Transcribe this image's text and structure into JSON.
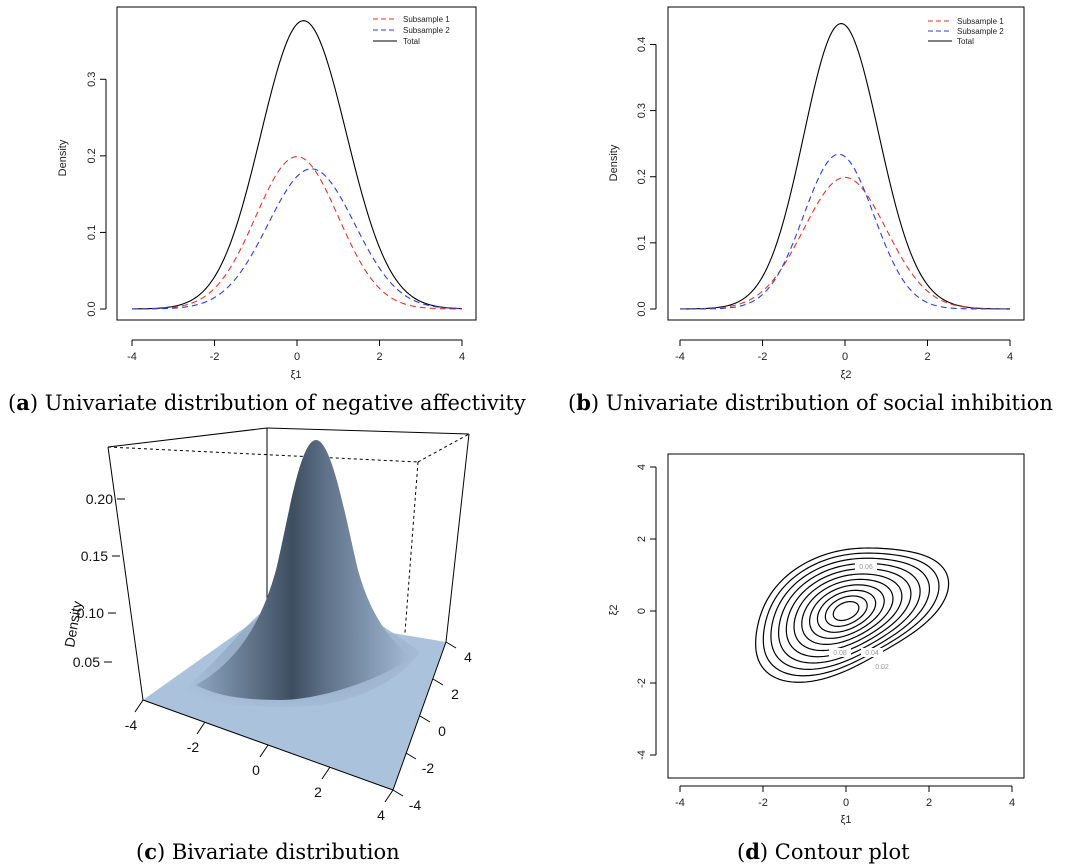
{
  "captions": {
    "a": {
      "letter": "a",
      "text": " Univariate distribution of negative affectivity"
    },
    "b": {
      "letter": "b",
      "text": " Univariate distribution of social inhibition"
    },
    "c": {
      "letter": "c",
      "text": " Bivariate distribution"
    },
    "d": {
      "letter": "d",
      "text": " Contour plot"
    }
  },
  "chart_data": [
    {
      "id": "a",
      "type": "line",
      "xlabel": "ξ1",
      "ylabel": "Density",
      "xlim": [
        -4,
        4
      ],
      "ylim": [
        0,
        0.38
      ],
      "xticks": [
        "-4",
        "-2",
        "0",
        "2",
        "4"
      ],
      "yticks": [
        "0.0",
        "0.1",
        "0.2",
        "0.3"
      ],
      "legend": {
        "position": "top-right",
        "entries": [
          "Subsample 1",
          "Subsample 2",
          "Total"
        ]
      },
      "series": [
        {
          "name": "Subsample 1",
          "style": "dashed",
          "color": "#e8322a",
          "distribution": "normal-mixture-component",
          "peak_x": 0.0,
          "peak_y": 0.199,
          "sd": 1.0
        },
        {
          "name": "Subsample 2",
          "style": "dashed",
          "color": "#2a3be8",
          "distribution": "normal-mixture-component",
          "peak_x": 0.35,
          "peak_y": 0.183,
          "sd": 1.05
        },
        {
          "name": "Total",
          "style": "solid",
          "color": "#000000",
          "distribution": "sum",
          "peak_x": 0.17,
          "peak_y": 0.381
        }
      ]
    },
    {
      "id": "b",
      "type": "line",
      "xlabel": "ξ2",
      "ylabel": "Density",
      "xlim": [
        -4,
        4
      ],
      "ylim": [
        0,
        0.43
      ],
      "xticks": [
        "-4",
        "-2",
        "0",
        "2",
        "4"
      ],
      "yticks": [
        "0.0",
        "0.1",
        "0.2",
        "0.3",
        "0.4"
      ],
      "legend": {
        "position": "top-right",
        "entries": [
          "Subsample 1",
          "Subsample 2",
          "Total"
        ]
      },
      "series": [
        {
          "name": "Subsample 1",
          "style": "dashed",
          "color": "#e8322a",
          "distribution": "normal-mixture-component",
          "peak_x": 0.0,
          "peak_y": 0.199,
          "sd": 1.0
        },
        {
          "name": "Subsample 2",
          "style": "dashed",
          "color": "#2a3be8",
          "distribution": "normal-mixture-component",
          "peak_x": -0.15,
          "peak_y": 0.234,
          "sd": 0.85
        },
        {
          "name": "Total",
          "style": "solid",
          "color": "#000000",
          "distribution": "sum",
          "peak_x": -0.07,
          "peak_y": 0.433
        }
      ]
    },
    {
      "id": "c",
      "type": "surface",
      "zlabel": "Density",
      "zticks": [
        "0.05",
        "0.10",
        "0.15",
        "0.20"
      ],
      "xticks": [
        "-4",
        "-2",
        "0",
        "2",
        "4"
      ],
      "yticks": [
        "4",
        "2",
        "0",
        "-2",
        "-4"
      ],
      "zmax": 0.24,
      "color": "#a9c0db"
    },
    {
      "id": "d",
      "type": "contour",
      "xlabel": "ξ1",
      "ylabel": "ξ2",
      "xlim": [
        -4,
        4
      ],
      "ylim": [
        -4,
        4
      ],
      "xticks": [
        "-4",
        "-2",
        "0",
        "2",
        "4"
      ],
      "yticks": [
        "-4",
        "-2",
        "0",
        "2",
        "4"
      ],
      "levels": [
        0.02,
        0.04,
        0.06,
        0.08,
        0.1,
        0.12,
        0.14,
        0.16,
        0.18,
        0.2,
        0.22
      ],
      "level_labels": [
        "0.02",
        "0.04",
        "0.06",
        "0.08"
      ]
    }
  ]
}
